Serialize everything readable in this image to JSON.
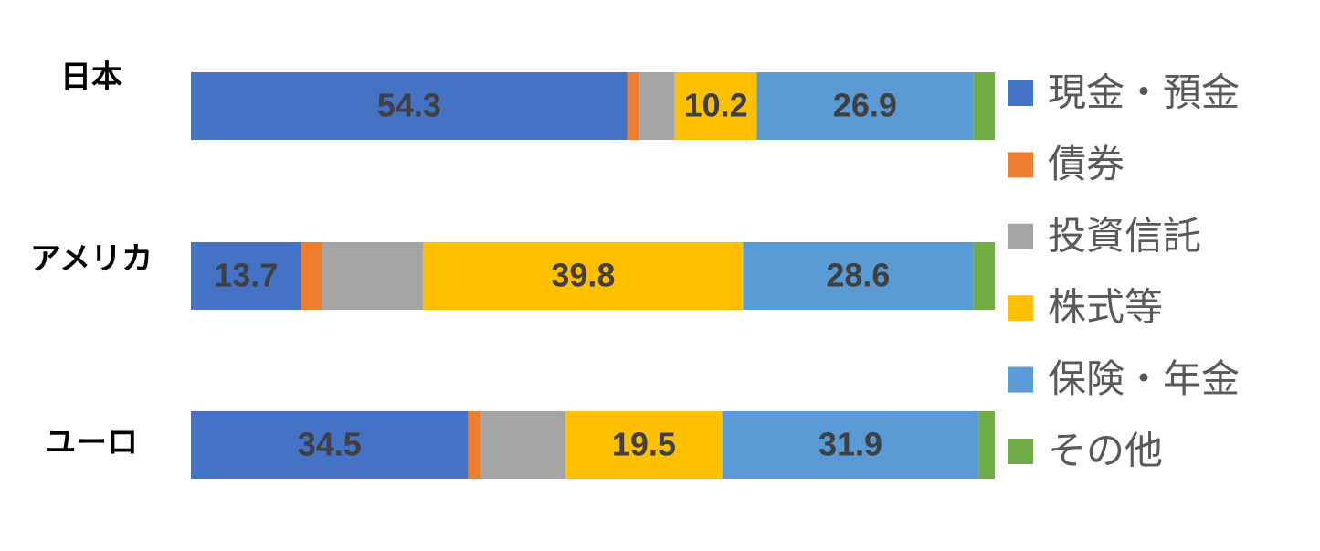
{
  "chart_data": {
    "type": "stacked-bar-horizontal",
    "categories": [
      "日本",
      "アメリカ",
      "ユーロ"
    ],
    "xlim": [
      0,
      100
    ],
    "series": [
      {
        "name": "現金・預金",
        "color": "#4472c4",
        "values": [
          54.3,
          13.7,
          34.5
        ],
        "value_labels": [
          "54.3",
          "13.7",
          "34.5"
        ]
      },
      {
        "name": "債券",
        "color": "#ed7d31",
        "values": [
          1.4,
          2.6,
          1.6
        ],
        "value_labels": [
          null,
          null,
          null
        ]
      },
      {
        "name": "投資信託",
        "color": "#a5a5a5",
        "values": [
          4.5,
          12.6,
          10.5
        ],
        "value_labels": [
          null,
          null,
          null
        ]
      },
      {
        "name": "株式等",
        "color": "#ffc000",
        "values": [
          10.2,
          39.8,
          19.5
        ],
        "value_labels": [
          "10.2",
          "39.8",
          "19.5"
        ]
      },
      {
        "name": "保険・年金",
        "color": "#5b9bd5",
        "values": [
          26.9,
          28.6,
          31.9
        ],
        "value_labels": [
          "26.9",
          "28.6",
          "31.9"
        ]
      },
      {
        "name": "その他",
        "color": "#70ad47",
        "values": [
          2.7,
          2.7,
          2.0
        ],
        "value_labels": [
          null,
          null,
          null
        ]
      }
    ]
  }
}
